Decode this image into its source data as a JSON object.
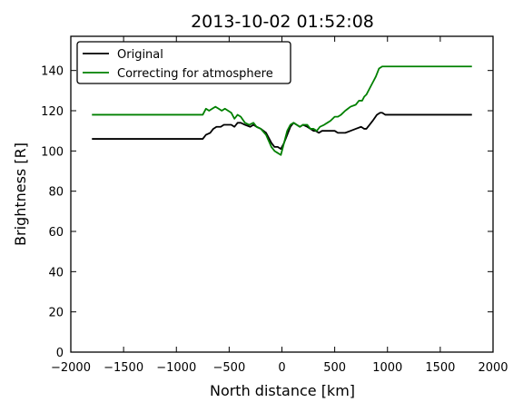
{
  "chart_data": {
    "type": "line",
    "title": "2013-10-02 01:52:08",
    "xlabel": "North distance [km]",
    "ylabel": "Brightness [R]",
    "xlim": [
      -2000,
      2000
    ],
    "ylim": [
      0,
      157
    ],
    "xticks": [
      -2000,
      -1500,
      -1000,
      -500,
      0,
      500,
      1000,
      1500,
      2000
    ],
    "xtick_labels": [
      "−2000",
      "−1500",
      "−1000",
      "−500",
      "0",
      "500",
      "1000",
      "1500",
      "2000"
    ],
    "yticks": [
      0,
      20,
      40,
      60,
      80,
      100,
      120,
      140
    ],
    "ytick_labels": [
      "0",
      "20",
      "40",
      "60",
      "80",
      "100",
      "120",
      "140"
    ],
    "grid": false,
    "legend_position": "top-left",
    "series": [
      {
        "name": "Original",
        "color": "#000000",
        "x": [
          -1800,
          -1500,
          -1000,
          -750,
          -720,
          -680,
          -650,
          -620,
          -580,
          -550,
          -520,
          -480,
          -450,
          -420,
          -390,
          -350,
          -300,
          -270,
          -240,
          -200,
          -150,
          -100,
          -70,
          -40,
          -10,
          20,
          50,
          80,
          110,
          140,
          170,
          200,
          240,
          270,
          300,
          320,
          350,
          380,
          400,
          450,
          500,
          530,
          560,
          600,
          650,
          700,
          750,
          780,
          800,
          830,
          860,
          900,
          930,
          950,
          980,
          1000,
          1100,
          1500,
          1800
        ],
        "y": [
          106,
          106,
          106,
          106,
          108,
          109,
          111,
          112,
          112,
          113,
          113,
          113,
          112,
          114,
          114,
          113,
          112,
          113,
          112,
          111,
          109,
          104,
          102,
          102,
          101,
          104,
          108,
          112,
          114,
          113,
          112,
          113,
          112,
          111,
          110,
          110,
          109,
          110,
          110,
          110,
          110,
          109,
          109,
          109,
          110,
          111,
          112,
          111,
          111,
          113,
          115,
          118,
          119,
          119,
          118,
          118,
          118,
          118,
          118
        ]
      },
      {
        "name": "Correcting for atmosphere",
        "color": "#008000",
        "x": [
          -1800,
          -1500,
          -1000,
          -750,
          -720,
          -690,
          -660,
          -630,
          -600,
          -570,
          -540,
          -510,
          -480,
          -450,
          -420,
          -390,
          -350,
          -310,
          -270,
          -240,
          -200,
          -150,
          -100,
          -70,
          -40,
          -10,
          20,
          50,
          80,
          110,
          140,
          170,
          200,
          240,
          270,
          300,
          330,
          360,
          400,
          430,
          460,
          500,
          530,
          560,
          600,
          650,
          700,
          730,
          760,
          780,
          800,
          830,
          860,
          890,
          920,
          950,
          980,
          1000,
          1100,
          1500,
          1800
        ],
        "y": [
          118,
          118,
          118,
          118,
          121,
          120,
          121,
          122,
          121,
          120,
          121,
          120,
          119,
          116,
          118,
          117,
          114,
          113,
          114,
          112,
          111,
          108,
          102,
          100,
          99,
          98,
          104,
          110,
          113,
          114,
          113,
          112,
          113,
          113,
          111,
          111,
          110,
          112,
          113,
          114,
          115,
          117,
          117,
          118,
          120,
          122,
          123,
          125,
          125,
          127,
          128,
          131,
          134,
          137,
          141,
          142,
          142,
          142,
          142,
          142,
          142
        ]
      }
    ]
  }
}
